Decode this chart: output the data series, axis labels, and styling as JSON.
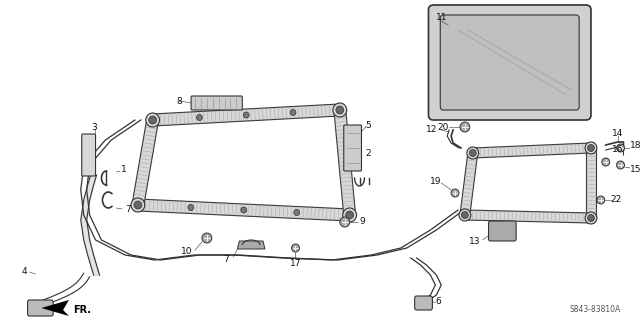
{
  "bg_color": "#ffffff",
  "line_color": "#333333",
  "text_color": "#222222",
  "diagram_code": "S843-83810A",
  "fr_label": "FR.",
  "hatch_color": "#888888",
  "light_gray": "#bbbbbb",
  "mid_gray": "#999999"
}
